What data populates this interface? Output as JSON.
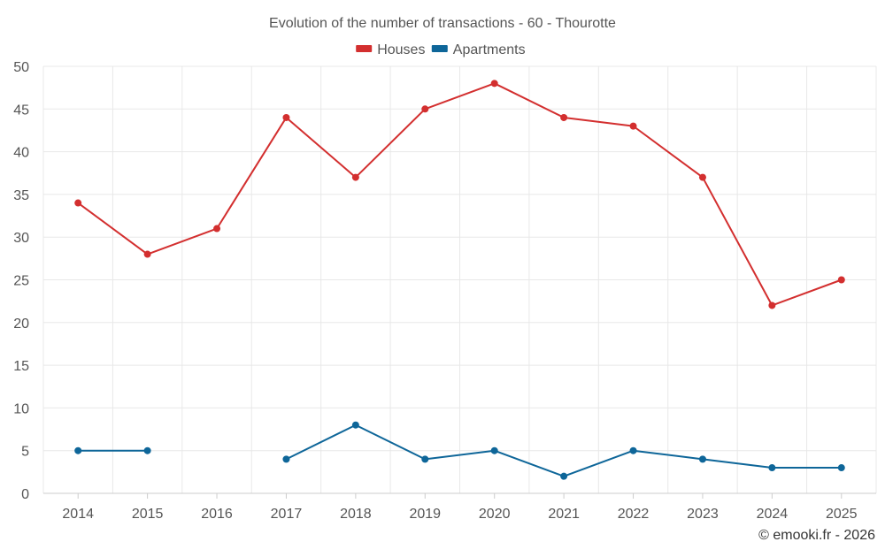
{
  "chart_data": {
    "type": "line",
    "title": "Evolution of the number of transactions - 60 - Thourotte",
    "xlabel": "",
    "ylabel": "",
    "categories": [
      "2014",
      "2015",
      "2016",
      "2017",
      "2018",
      "2019",
      "2020",
      "2021",
      "2022",
      "2023",
      "2024",
      "2025"
    ],
    "ylim": [
      0,
      50
    ],
    "yticks": [
      0,
      5,
      10,
      15,
      20,
      25,
      30,
      35,
      40,
      45,
      50
    ],
    "grid": true,
    "legend_position": "top-center",
    "series": [
      {
        "name": "Houses",
        "color": "#d32f2f",
        "values": [
          34,
          28,
          31,
          44,
          37,
          45,
          48,
          44,
          43,
          37,
          22,
          25
        ]
      },
      {
        "name": "Apartments",
        "color": "#0e6699",
        "values": [
          5,
          5,
          null,
          4,
          8,
          4,
          5,
          2,
          5,
          4,
          3,
          3
        ]
      }
    ]
  },
  "credit": "© emooki.fr - 2026"
}
